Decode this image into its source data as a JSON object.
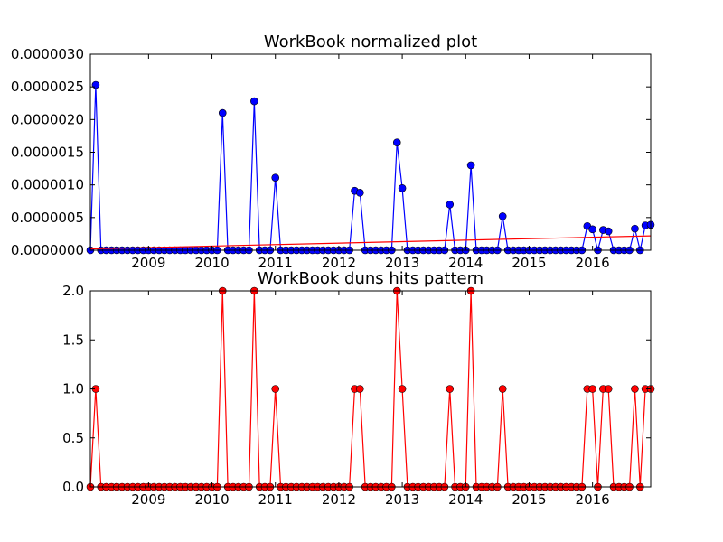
{
  "chart_data": [
    {
      "type": "line",
      "title": "WorkBook normalized plot",
      "xlim": [
        2008.083,
        2016.917
      ],
      "ylim": [
        0,
        3e-06
      ],
      "x_tick_labels": [
        "2009",
        "2010",
        "2011",
        "2012",
        "2013",
        "2014",
        "2015",
        "2016"
      ],
      "y_tick_labels": [
        "0.0000000",
        "0.0000005",
        "0.0000010",
        "0.0000015",
        "0.0000020",
        "0.0000025",
        "0.0000030"
      ],
      "series": [
        {
          "color": "#0000ff",
          "marker": "circle",
          "points": [
            [
              2008.083,
              0
            ],
            [
              2008.167,
              2.53e-06
            ],
            [
              2008.25,
              0
            ],
            [
              2008.333,
              0
            ],
            [
              2008.417,
              0
            ],
            [
              2008.5,
              0
            ],
            [
              2008.583,
              0
            ],
            [
              2008.667,
              0
            ],
            [
              2008.75,
              0
            ],
            [
              2008.833,
              0
            ],
            [
              2008.917,
              0
            ],
            [
              2009.0,
              0
            ],
            [
              2009.083,
              0
            ],
            [
              2009.167,
              0
            ],
            [
              2009.25,
              0
            ],
            [
              2009.333,
              0
            ],
            [
              2009.417,
              0
            ],
            [
              2009.5,
              0
            ],
            [
              2009.583,
              0
            ],
            [
              2009.667,
              0
            ],
            [
              2009.75,
              0
            ],
            [
              2009.833,
              0
            ],
            [
              2009.917,
              0
            ],
            [
              2010.0,
              0
            ],
            [
              2010.083,
              0
            ],
            [
              2010.167,
              2.1e-06
            ],
            [
              2010.25,
              0
            ],
            [
              2010.333,
              0
            ],
            [
              2010.417,
              0
            ],
            [
              2010.5,
              0
            ],
            [
              2010.583,
              0
            ],
            [
              2010.667,
              2.28e-06
            ],
            [
              2010.75,
              0
            ],
            [
              2010.833,
              0
            ],
            [
              2010.917,
              0
            ],
            [
              2011.0,
              1.11e-06
            ],
            [
              2011.083,
              0
            ],
            [
              2011.167,
              0
            ],
            [
              2011.25,
              0
            ],
            [
              2011.333,
              0
            ],
            [
              2011.417,
              0
            ],
            [
              2011.5,
              0
            ],
            [
              2011.583,
              0
            ],
            [
              2011.667,
              0
            ],
            [
              2011.75,
              0
            ],
            [
              2011.833,
              0
            ],
            [
              2011.917,
              0
            ],
            [
              2012.0,
              0
            ],
            [
              2012.083,
              0
            ],
            [
              2012.167,
              0
            ],
            [
              2012.25,
              9.1e-07
            ],
            [
              2012.333,
              8.8e-07
            ],
            [
              2012.417,
              0
            ],
            [
              2012.5,
              0
            ],
            [
              2012.583,
              0
            ],
            [
              2012.667,
              0
            ],
            [
              2012.75,
              0
            ],
            [
              2012.833,
              0
            ],
            [
              2012.917,
              1.65e-06
            ],
            [
              2013.0,
              9.5e-07
            ],
            [
              2013.083,
              0
            ],
            [
              2013.167,
              0
            ],
            [
              2013.25,
              0
            ],
            [
              2013.333,
              0
            ],
            [
              2013.417,
              0
            ],
            [
              2013.5,
              0
            ],
            [
              2013.583,
              0
            ],
            [
              2013.667,
              0
            ],
            [
              2013.75,
              7e-07
            ],
            [
              2013.833,
              0
            ],
            [
              2013.917,
              0
            ],
            [
              2014.0,
              0
            ],
            [
              2014.083,
              1.3e-06
            ],
            [
              2014.167,
              0
            ],
            [
              2014.25,
              0
            ],
            [
              2014.333,
              0
            ],
            [
              2014.417,
              0
            ],
            [
              2014.5,
              0
            ],
            [
              2014.583,
              5.2e-07
            ],
            [
              2014.667,
              0
            ],
            [
              2014.75,
              0
            ],
            [
              2014.833,
              0
            ],
            [
              2014.917,
              0
            ],
            [
              2015.0,
              0
            ],
            [
              2015.083,
              0
            ],
            [
              2015.167,
              0
            ],
            [
              2015.25,
              0
            ],
            [
              2015.333,
              0
            ],
            [
              2015.417,
              0
            ],
            [
              2015.5,
              0
            ],
            [
              2015.583,
              0
            ],
            [
              2015.667,
              0
            ],
            [
              2015.75,
              0
            ],
            [
              2015.833,
              0
            ],
            [
              2015.917,
              3.7e-07
            ],
            [
              2016.0,
              3.2e-07
            ],
            [
              2016.083,
              0
            ],
            [
              2016.167,
              3.1e-07
            ],
            [
              2016.25,
              2.9e-07
            ],
            [
              2016.333,
              0
            ],
            [
              2016.417,
              0
            ],
            [
              2016.5,
              0
            ],
            [
              2016.583,
              0
            ],
            [
              2016.667,
              3.3e-07
            ],
            [
              2016.75,
              0
            ],
            [
              2016.833,
              3.8e-07
            ],
            [
              2016.917,
              3.9e-07
            ]
          ]
        },
        {
          "color": "#ff0000",
          "marker": "none",
          "points": [
            [
              2008.083,
              2e-08
            ],
            [
              2016.917,
              2.2e-07
            ]
          ]
        }
      ]
    },
    {
      "type": "line",
      "title": "WorkBook duns hits pattern",
      "xlim": [
        2008.083,
        2016.917
      ],
      "ylim": [
        0,
        2
      ],
      "x_tick_labels": [
        "2009",
        "2010",
        "2011",
        "2012",
        "2013",
        "2014",
        "2015",
        "2016"
      ],
      "y_tick_labels": [
        "0.0",
        "0.5",
        "1.0",
        "1.5",
        "2.0"
      ],
      "series": [
        {
          "color": "#ff0000",
          "marker": "circle",
          "points": [
            [
              2008.083,
              0
            ],
            [
              2008.167,
              1
            ],
            [
              2008.25,
              0
            ],
            [
              2008.333,
              0
            ],
            [
              2008.417,
              0
            ],
            [
              2008.5,
              0
            ],
            [
              2008.583,
              0
            ],
            [
              2008.667,
              0
            ],
            [
              2008.75,
              0
            ],
            [
              2008.833,
              0
            ],
            [
              2008.917,
              0
            ],
            [
              2009.0,
              0
            ],
            [
              2009.083,
              0
            ],
            [
              2009.167,
              0
            ],
            [
              2009.25,
              0
            ],
            [
              2009.333,
              0
            ],
            [
              2009.417,
              0
            ],
            [
              2009.5,
              0
            ],
            [
              2009.583,
              0
            ],
            [
              2009.667,
              0
            ],
            [
              2009.75,
              0
            ],
            [
              2009.833,
              0
            ],
            [
              2009.917,
              0
            ],
            [
              2010.0,
              0
            ],
            [
              2010.083,
              0
            ],
            [
              2010.167,
              2
            ],
            [
              2010.25,
              0
            ],
            [
              2010.333,
              0
            ],
            [
              2010.417,
              0
            ],
            [
              2010.5,
              0
            ],
            [
              2010.583,
              0
            ],
            [
              2010.667,
              2
            ],
            [
              2010.75,
              0
            ],
            [
              2010.833,
              0
            ],
            [
              2010.917,
              0
            ],
            [
              2011.0,
              1
            ],
            [
              2011.083,
              0
            ],
            [
              2011.167,
              0
            ],
            [
              2011.25,
              0
            ],
            [
              2011.333,
              0
            ],
            [
              2011.417,
              0
            ],
            [
              2011.5,
              0
            ],
            [
              2011.583,
              0
            ],
            [
              2011.667,
              0
            ],
            [
              2011.75,
              0
            ],
            [
              2011.833,
              0
            ],
            [
              2011.917,
              0
            ],
            [
              2012.0,
              0
            ],
            [
              2012.083,
              0
            ],
            [
              2012.167,
              0
            ],
            [
              2012.25,
              1
            ],
            [
              2012.333,
              1
            ],
            [
              2012.417,
              0
            ],
            [
              2012.5,
              0
            ],
            [
              2012.583,
              0
            ],
            [
              2012.667,
              0
            ],
            [
              2012.75,
              0
            ],
            [
              2012.833,
              0
            ],
            [
              2012.917,
              2
            ],
            [
              2013.0,
              1
            ],
            [
              2013.083,
              0
            ],
            [
              2013.167,
              0
            ],
            [
              2013.25,
              0
            ],
            [
              2013.333,
              0
            ],
            [
              2013.417,
              0
            ],
            [
              2013.5,
              0
            ],
            [
              2013.583,
              0
            ],
            [
              2013.667,
              0
            ],
            [
              2013.75,
              1
            ],
            [
              2013.833,
              0
            ],
            [
              2013.917,
              0
            ],
            [
              2014.0,
              0
            ],
            [
              2014.083,
              2
            ],
            [
              2014.167,
              0
            ],
            [
              2014.25,
              0
            ],
            [
              2014.333,
              0
            ],
            [
              2014.417,
              0
            ],
            [
              2014.5,
              0
            ],
            [
              2014.583,
              1
            ],
            [
              2014.667,
              0
            ],
            [
              2014.75,
              0
            ],
            [
              2014.833,
              0
            ],
            [
              2014.917,
              0
            ],
            [
              2015.0,
              0
            ],
            [
              2015.083,
              0
            ],
            [
              2015.167,
              0
            ],
            [
              2015.25,
              0
            ],
            [
              2015.333,
              0
            ],
            [
              2015.417,
              0
            ],
            [
              2015.5,
              0
            ],
            [
              2015.583,
              0
            ],
            [
              2015.667,
              0
            ],
            [
              2015.75,
              0
            ],
            [
              2015.833,
              0
            ],
            [
              2015.917,
              1
            ],
            [
              2016.0,
              1
            ],
            [
              2016.083,
              0
            ],
            [
              2016.167,
              1
            ],
            [
              2016.25,
              1
            ],
            [
              2016.333,
              0
            ],
            [
              2016.417,
              0
            ],
            [
              2016.5,
              0
            ],
            [
              2016.583,
              0
            ],
            [
              2016.667,
              1
            ],
            [
              2016.75,
              0
            ],
            [
              2016.833,
              1
            ],
            [
              2016.917,
              1
            ]
          ]
        }
      ]
    }
  ]
}
